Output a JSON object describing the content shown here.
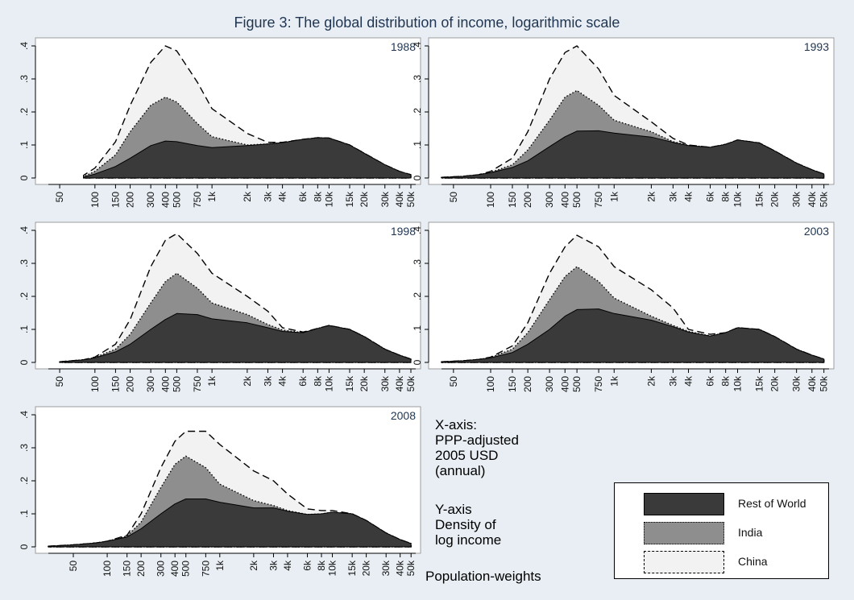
{
  "title": "Figure 3: The global distribution of income, logarithmic scale",
  "notes": {
    "x_axis": [
      "X-axis:",
      "PPP-adjusted",
      "2005 USD",
      "(annual)"
    ],
    "y_axis": [
      "Y-axis",
      "Density of",
      "log income"
    ],
    "weights": "Population-weights"
  },
  "colors": {
    "rest_of_world": "#3a3a3a",
    "india": "#8e8e8e",
    "china": "#f2f2f2",
    "background": "#e8eef3",
    "panel": "#ffffff",
    "title": "#1f3552"
  },
  "legend": [
    {
      "label": "Rest of World",
      "style": "solid",
      "color": "#3a3a3a"
    },
    {
      "label": "India",
      "style": "dotted",
      "color": "#8e8e8e"
    },
    {
      "label": "China",
      "style": "dashed",
      "color": "#f2f2f2"
    }
  ],
  "chart_data": [
    {
      "type": "area",
      "year": "1988",
      "xscale": "log",
      "xlim": [
        40,
        55000
      ],
      "ylim": [
        0,
        0.4
      ],
      "yticks": [
        0,
        0.1,
        0.2,
        0.3,
        0.4
      ],
      "ytick_labels": [
        "0",
        ".1",
        ".2",
        ".3",
        ".4"
      ],
      "xtick_values": [
        50,
        100,
        150,
        200,
        300,
        400,
        500,
        750,
        1000,
        2000,
        3000,
        4000,
        6000,
        8000,
        10000,
        15000,
        20000,
        30000,
        40000,
        50000
      ],
      "xtick_labels": [
        "50",
        "100",
        "150",
        "200",
        "300",
        "400",
        "500",
        "750",
        "1k",
        "2k",
        "3k",
        "4k",
        "6k",
        "8k",
        "10k",
        "15k",
        "20k",
        "30k",
        "40k",
        "50k"
      ],
      "x": [
        80,
        100,
        150,
        200,
        300,
        400,
        500,
        750,
        1000,
        2000,
        3000,
        4000,
        6000,
        8000,
        10000,
        15000,
        20000,
        30000,
        40000,
        50000
      ],
      "series": [
        {
          "name": "Rest of World",
          "values": [
            0.003,
            0.012,
            0.035,
            0.06,
            0.098,
            0.112,
            0.11,
            0.098,
            0.092,
            0.098,
            0.103,
            0.107,
            0.117,
            0.122,
            0.121,
            0.1,
            0.075,
            0.04,
            0.02,
            0.01
          ]
        },
        {
          "name": "India",
          "values": [
            0.004,
            0.02,
            0.07,
            0.14,
            0.22,
            0.245,
            0.23,
            0.165,
            0.125,
            0.1,
            0.103,
            0.107,
            0.117,
            0.122,
            0.121,
            0.1,
            0.075,
            0.04,
            0.02,
            0.01
          ]
        },
        {
          "name": "China",
          "values": [
            0.008,
            0.03,
            0.11,
            0.22,
            0.35,
            0.4,
            0.385,
            0.29,
            0.21,
            0.135,
            0.108,
            0.108,
            0.117,
            0.122,
            0.121,
            0.1,
            0.075,
            0.04,
            0.02,
            0.01
          ]
        }
      ]
    },
    {
      "type": "area",
      "year": "1993",
      "xscale": "log",
      "xlim": [
        40,
        55000
      ],
      "ylim": [
        0,
        0.4
      ],
      "yticks": [
        0,
        0.1,
        0.2,
        0.3,
        0.4
      ],
      "ytick_labels": [
        "0",
        ".1",
        ".2",
        ".3",
        ".4"
      ],
      "xtick_values": [
        50,
        100,
        150,
        200,
        300,
        400,
        500,
        750,
        1000,
        2000,
        3000,
        4000,
        6000,
        8000,
        10000,
        15000,
        20000,
        30000,
        40000,
        50000
      ],
      "xtick_labels": [
        "50",
        "100",
        "150",
        "200",
        "300",
        "400",
        "500",
        "750",
        "1k",
        "2k",
        "3k",
        "4k",
        "6k",
        "8k",
        "10k",
        "15k",
        "20k",
        "30k",
        "40k",
        "50k"
      ],
      "x": [
        40,
        60,
        80,
        100,
        150,
        200,
        300,
        400,
        500,
        750,
        1000,
        2000,
        3000,
        4000,
        6000,
        8000,
        10000,
        15000,
        20000,
        30000,
        40000,
        50000
      ],
      "series": [
        {
          "name": "Rest of World",
          "values": [
            0.002,
            0.005,
            0.01,
            0.016,
            0.032,
            0.052,
            0.095,
            0.125,
            0.142,
            0.143,
            0.136,
            0.124,
            0.108,
            0.098,
            0.093,
            0.102,
            0.115,
            0.106,
            0.082,
            0.045,
            0.025,
            0.012
          ]
        },
        {
          "name": "India",
          "values": [
            0.002,
            0.005,
            0.01,
            0.017,
            0.04,
            0.085,
            0.175,
            0.245,
            0.265,
            0.22,
            0.175,
            0.14,
            0.11,
            0.099,
            0.093,
            0.102,
            0.115,
            0.106,
            0.082,
            0.045,
            0.025,
            0.012
          ]
        },
        {
          "name": "China",
          "values": [
            0.002,
            0.005,
            0.01,
            0.02,
            0.06,
            0.14,
            0.3,
            0.38,
            0.4,
            0.33,
            0.25,
            0.17,
            0.12,
            0.1,
            0.093,
            0.102,
            0.115,
            0.106,
            0.082,
            0.045,
            0.025,
            0.012
          ]
        }
      ]
    },
    {
      "type": "area",
      "year": "1998",
      "xscale": "log",
      "xlim": [
        40,
        55000
      ],
      "ylim": [
        0,
        0.4
      ],
      "yticks": [
        0,
        0.1,
        0.2,
        0.3,
        0.4
      ],
      "ytick_labels": [
        "0",
        ".1",
        ".2",
        ".3",
        ".4"
      ],
      "xtick_values": [
        50,
        100,
        150,
        200,
        300,
        400,
        500,
        750,
        1000,
        2000,
        3000,
        4000,
        6000,
        8000,
        10000,
        15000,
        20000,
        30000,
        40000,
        50000
      ],
      "xtick_labels": [
        "50",
        "100",
        "150",
        "200",
        "300",
        "400",
        "500",
        "750",
        "1k",
        "2k",
        "3k",
        "4k",
        "6k",
        "8k",
        "10k",
        "15k",
        "20k",
        "30k",
        "40k",
        "50k"
      ],
      "x": [
        50,
        80,
        100,
        150,
        200,
        300,
        400,
        500,
        750,
        1000,
        2000,
        3000,
        4000,
        6000,
        8000,
        10000,
        15000,
        20000,
        30000,
        40000,
        50000
      ],
      "series": [
        {
          "name": "Rest of World",
          "values": [
            0.002,
            0.008,
            0.014,
            0.032,
            0.055,
            0.1,
            0.13,
            0.148,
            0.145,
            0.132,
            0.12,
            0.105,
            0.094,
            0.09,
            0.103,
            0.112,
            0.1,
            0.078,
            0.04,
            0.022,
            0.01
          ]
        },
        {
          "name": "India",
          "values": [
            0.002,
            0.008,
            0.015,
            0.04,
            0.085,
            0.18,
            0.245,
            0.27,
            0.225,
            0.18,
            0.145,
            0.115,
            0.098,
            0.09,
            0.103,
            0.112,
            0.1,
            0.078,
            0.04,
            0.022,
            0.01
          ]
        },
        {
          "name": "China",
          "values": [
            0.002,
            0.008,
            0.016,
            0.055,
            0.13,
            0.29,
            0.37,
            0.39,
            0.33,
            0.27,
            0.2,
            0.155,
            0.105,
            0.092,
            0.103,
            0.112,
            0.1,
            0.078,
            0.04,
            0.022,
            0.01
          ]
        }
      ]
    },
    {
      "type": "area",
      "year": "2003",
      "xscale": "log",
      "xlim": [
        40,
        55000
      ],
      "ylim": [
        0,
        0.4
      ],
      "yticks": [
        0,
        0.1,
        0.2,
        0.3,
        0.4
      ],
      "ytick_labels": [
        "0",
        ".1",
        ".2",
        ".3",
        ".4"
      ],
      "xtick_values": [
        50,
        100,
        150,
        200,
        300,
        400,
        500,
        750,
        1000,
        2000,
        3000,
        4000,
        6000,
        8000,
        10000,
        15000,
        20000,
        30000,
        40000,
        50000
      ],
      "xtick_labels": [
        "50",
        "100",
        "150",
        "200",
        "300",
        "400",
        "500",
        "750",
        "1k",
        "2k",
        "3k",
        "4k",
        "6k",
        "8k",
        "10k",
        "15k",
        "20k",
        "30k",
        "40k",
        "50k"
      ],
      "x": [
        40,
        60,
        80,
        100,
        150,
        200,
        300,
        400,
        500,
        750,
        1000,
        2000,
        3000,
        4000,
        6000,
        8000,
        10000,
        15000,
        20000,
        30000,
        40000,
        50000
      ],
      "series": [
        {
          "name": "Rest of World",
          "values": [
            0.002,
            0.005,
            0.009,
            0.014,
            0.03,
            0.055,
            0.1,
            0.14,
            0.16,
            0.162,
            0.148,
            0.128,
            0.108,
            0.092,
            0.08,
            0.09,
            0.105,
            0.1,
            0.078,
            0.04,
            0.022,
            0.01
          ]
        },
        {
          "name": "India",
          "values": [
            0.002,
            0.005,
            0.009,
            0.015,
            0.04,
            0.09,
            0.19,
            0.26,
            0.29,
            0.245,
            0.195,
            0.14,
            0.112,
            0.094,
            0.08,
            0.09,
            0.105,
            0.1,
            0.078,
            0.04,
            0.022,
            0.01
          ]
        },
        {
          "name": "China",
          "values": [
            0.002,
            0.005,
            0.009,
            0.016,
            0.05,
            0.12,
            0.27,
            0.35,
            0.385,
            0.35,
            0.29,
            0.22,
            0.165,
            0.1,
            0.085,
            0.09,
            0.105,
            0.1,
            0.078,
            0.04,
            0.022,
            0.01
          ]
        }
      ]
    },
    {
      "type": "area",
      "year": "2008",
      "xscale": "log",
      "xlim": [
        30,
        55000
      ],
      "ylim": [
        0,
        0.4
      ],
      "yticks": [
        0,
        0.1,
        0.2,
        0.3,
        0.4
      ],
      "ytick_labels": [
        "0",
        ".1",
        ".2",
        ".3",
        ".4"
      ],
      "xtick_values": [
        50,
        100,
        150,
        200,
        300,
        400,
        500,
        750,
        1000,
        2000,
        3000,
        4000,
        6000,
        8000,
        10000,
        15000,
        20000,
        30000,
        40000,
        50000
      ],
      "xtick_labels": [
        "50",
        "100",
        "150",
        "200",
        "300",
        "400",
        "500",
        "750",
        "1k",
        "2k",
        "3k",
        "4k",
        "6k",
        "8k",
        "10k",
        "15k",
        "20k",
        "30k",
        "40k",
        "50k"
      ],
      "x": [
        30,
        50,
        80,
        100,
        150,
        200,
        300,
        400,
        500,
        750,
        1000,
        2000,
        3000,
        4000,
        6000,
        8000,
        10000,
        15000,
        20000,
        30000,
        40000,
        50000
      ],
      "series": [
        {
          "name": "Rest of World",
          "values": [
            0.002,
            0.006,
            0.012,
            0.017,
            0.03,
            0.055,
            0.1,
            0.13,
            0.145,
            0.145,
            0.135,
            0.118,
            0.118,
            0.108,
            0.098,
            0.1,
            0.105,
            0.1,
            0.08,
            0.042,
            0.022,
            0.01
          ]
        },
        {
          "name": "India",
          "values": [
            0.002,
            0.006,
            0.012,
            0.017,
            0.033,
            0.075,
            0.18,
            0.25,
            0.275,
            0.24,
            0.19,
            0.14,
            0.125,
            0.11,
            0.098,
            0.1,
            0.105,
            0.1,
            0.08,
            0.042,
            0.022,
            0.01
          ]
        },
        {
          "name": "China",
          "values": [
            0.002,
            0.006,
            0.012,
            0.017,
            0.035,
            0.1,
            0.24,
            0.32,
            0.35,
            0.35,
            0.31,
            0.23,
            0.2,
            0.16,
            0.115,
            0.11,
            0.11,
            0.1,
            0.08,
            0.042,
            0.022,
            0.01
          ]
        }
      ]
    }
  ]
}
